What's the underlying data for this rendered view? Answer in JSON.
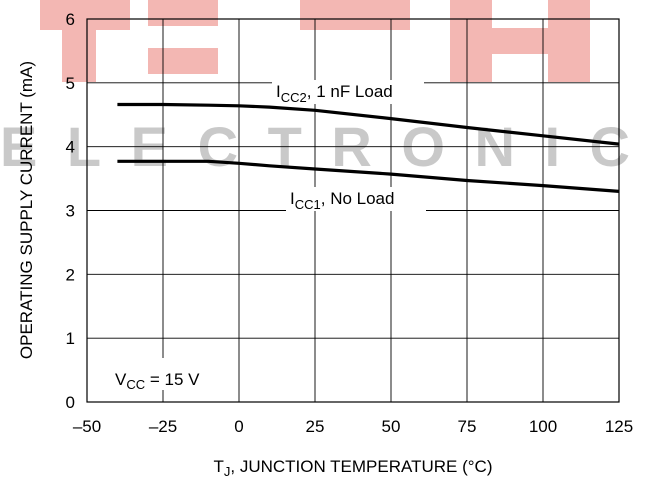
{
  "chart_data": {
    "type": "line",
    "xlabel": {
      "prefix": "T",
      "sub": "J",
      "suffix": ", JUNCTION TEMPERATURE (°C)"
    },
    "ylabel": "OPERATING SUPPLY CURRENT (mA)",
    "xlim": [
      -50,
      125
    ],
    "ylim": [
      0,
      6
    ],
    "x_ticks": [
      -50,
      -25,
      0,
      25,
      50,
      75,
      100,
      125
    ],
    "y_ticks": [
      0,
      1,
      2,
      3,
      4,
      5,
      6
    ],
    "grid": true,
    "series": [
      {
        "name": "ICC2, 1 nF Load",
        "label": {
          "main": "I",
          "sub": "CC2",
          "rest": ", 1 nF Load"
        },
        "x": [
          -40,
          -25,
          -10,
          0,
          10,
          25,
          50,
          75,
          100,
          125
        ],
        "y": [
          4.66,
          4.66,
          4.65,
          4.64,
          4.62,
          4.57,
          4.44,
          4.3,
          4.17,
          4.04
        ],
        "color": "#000000"
      },
      {
        "name": "ICC1, No Load",
        "label": {
          "main": "I",
          "sub": "CC1",
          "rest": ", No Load"
        },
        "x": [
          -40,
          -25,
          -10,
          0,
          10,
          25,
          50,
          75,
          100,
          125
        ],
        "y": [
          3.77,
          3.77,
          3.77,
          3.74,
          3.7,
          3.65,
          3.57,
          3.47,
          3.39,
          3.3
        ],
        "color": "#000000"
      }
    ],
    "annotation": {
      "main": "V",
      "sub": "CC",
      "rest": " = 15 V"
    }
  },
  "watermark": {
    "top": "TECH",
    "middle": "ELECTRONIC"
  }
}
